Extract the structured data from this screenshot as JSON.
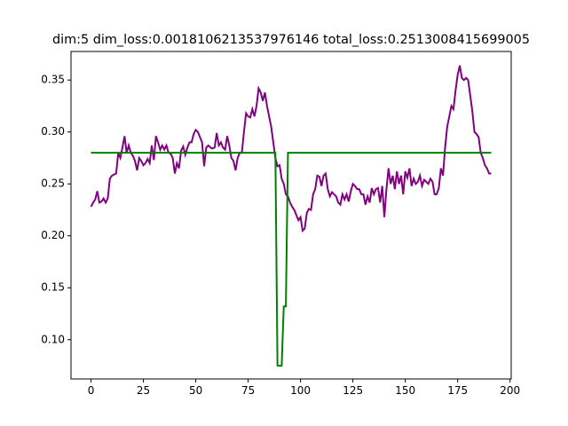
{
  "chart_data": {
    "type": "line",
    "title": "dim:5 dim_loss:0.0018106213537976146 total_loss:0.2513008415699005",
    "x": [
      0,
      1,
      2,
      3,
      4,
      5,
      6,
      7,
      8,
      9,
      10,
      11,
      12,
      13,
      14,
      15,
      16,
      17,
      18,
      19,
      20,
      21,
      22,
      23,
      24,
      25,
      26,
      27,
      28,
      29,
      30,
      31,
      32,
      33,
      34,
      35,
      36,
      37,
      38,
      39,
      40,
      41,
      42,
      43,
      44,
      45,
      46,
      47,
      48,
      49,
      50,
      51,
      52,
      53,
      54,
      55,
      56,
      57,
      58,
      59,
      60,
      61,
      62,
      63,
      64,
      65,
      66,
      67,
      68,
      69,
      70,
      71,
      72,
      73,
      74,
      75,
      76,
      77,
      78,
      79,
      80,
      81,
      82,
      83,
      84,
      85,
      86,
      87,
      88,
      89,
      90,
      91,
      92,
      93,
      94,
      95,
      96,
      97,
      98,
      99,
      100,
      101,
      102,
      103,
      104,
      105,
      106,
      107,
      108,
      109,
      110,
      111,
      112,
      113,
      114,
      115,
      116,
      117,
      118,
      119,
      120,
      121,
      122,
      123,
      124,
      125,
      126,
      127,
      128,
      129,
      130,
      131,
      132,
      133,
      134,
      135,
      136,
      137,
      138,
      139,
      140,
      141,
      142,
      143,
      144,
      145,
      146,
      147,
      148,
      149,
      150,
      151,
      152,
      153,
      154,
      155,
      156,
      157,
      158,
      159,
      160,
      161,
      162,
      163,
      164,
      165,
      166,
      167,
      168,
      169,
      170,
      171,
      172,
      173,
      174,
      175,
      176,
      177,
      178,
      179,
      180,
      181,
      182,
      183,
      184,
      185,
      186,
      187,
      188,
      189,
      190,
      191
    ],
    "series": [
      {
        "color": "#800080",
        "values": [
          0.228,
          0.232,
          0.235,
          0.243,
          0.232,
          0.233,
          0.236,
          0.232,
          0.236,
          0.255,
          0.258,
          0.259,
          0.26,
          0.28,
          0.275,
          0.285,
          0.296,
          0.28,
          0.287,
          0.28,
          0.277,
          0.272,
          0.263,
          0.275,
          0.272,
          0.268,
          0.27,
          0.274,
          0.27,
          0.287,
          0.273,
          0.296,
          0.29,
          0.283,
          0.287,
          0.283,
          0.287,
          0.28,
          0.279,
          0.275,
          0.26,
          0.27,
          0.265,
          0.282,
          0.286,
          0.278,
          0.285,
          0.29,
          0.29,
          0.298,
          0.302,
          0.3,
          0.295,
          0.29,
          0.267,
          0.285,
          0.287,
          0.285,
          0.284,
          0.285,
          0.299,
          0.287,
          0.29,
          0.285,
          0.283,
          0.296,
          0.287,
          0.275,
          0.272,
          0.263,
          0.275,
          0.28,
          0.28,
          0.3,
          0.318,
          0.315,
          0.314,
          0.322,
          0.315,
          0.325,
          0.342,
          0.338,
          0.33,
          0.338,
          0.325,
          0.315,
          0.305,
          0.29,
          0.275,
          0.267,
          0.268,
          0.255,
          0.25,
          0.24,
          0.238,
          0.232,
          0.228,
          0.225,
          0.22,
          0.215,
          0.218,
          0.205,
          0.207,
          0.222,
          0.226,
          0.225,
          0.24,
          0.245,
          0.258,
          0.257,
          0.248,
          0.258,
          0.26,
          0.245,
          0.238,
          0.242,
          0.24,
          0.238,
          0.232,
          0.23,
          0.24,
          0.235,
          0.24,
          0.233,
          0.243,
          0.25,
          0.248,
          0.245,
          0.245,
          0.24,
          0.24,
          0.23,
          0.238,
          0.232,
          0.246,
          0.24,
          0.245,
          0.246,
          0.232,
          0.248,
          0.218,
          0.245,
          0.265,
          0.25,
          0.258,
          0.245,
          0.262,
          0.25,
          0.258,
          0.24,
          0.262,
          0.256,
          0.265,
          0.248,
          0.255,
          0.25,
          0.252,
          0.258,
          0.248,
          0.254,
          0.252,
          0.25,
          0.255,
          0.252,
          0.24,
          0.24,
          0.246,
          0.265,
          0.258,
          0.285,
          0.305,
          0.315,
          0.325,
          0.322,
          0.34,
          0.355,
          0.364,
          0.352,
          0.35,
          0.352,
          0.35,
          0.335,
          0.32,
          0.3,
          0.298,
          0.295,
          0.28,
          0.275,
          0.268,
          0.265,
          0.26,
          0.26
        ]
      },
      {
        "color": "#008000",
        "values": [
          0.28,
          0.28,
          0.28,
          0.28,
          0.28,
          0.28,
          0.28,
          0.28,
          0.28,
          0.28,
          0.28,
          0.28,
          0.28,
          0.28,
          0.28,
          0.28,
          0.28,
          0.28,
          0.28,
          0.28,
          0.28,
          0.28,
          0.28,
          0.28,
          0.28,
          0.28,
          0.28,
          0.28,
          0.28,
          0.28,
          0.28,
          0.28,
          0.28,
          0.28,
          0.28,
          0.28,
          0.28,
          0.28,
          0.28,
          0.28,
          0.28,
          0.28,
          0.28,
          0.28,
          0.28,
          0.28,
          0.28,
          0.28,
          0.28,
          0.28,
          0.28,
          0.28,
          0.28,
          0.28,
          0.28,
          0.28,
          0.28,
          0.28,
          0.28,
          0.28,
          0.28,
          0.28,
          0.28,
          0.28,
          0.28,
          0.28,
          0.28,
          0.28,
          0.28,
          0.28,
          0.28,
          0.28,
          0.28,
          0.28,
          0.28,
          0.28,
          0.28,
          0.28,
          0.28,
          0.28,
          0.28,
          0.28,
          0.28,
          0.28,
          0.28,
          0.28,
          0.28,
          0.28,
          0.28,
          0.075,
          0.075,
          0.075,
          0.132,
          0.132,
          0.28,
          0.28,
          0.28,
          0.28,
          0.28,
          0.28,
          0.28,
          0.28,
          0.28,
          0.28,
          0.28,
          0.28,
          0.28,
          0.28,
          0.28,
          0.28,
          0.28,
          0.28,
          0.28,
          0.28,
          0.28,
          0.28,
          0.28,
          0.28,
          0.28,
          0.28,
          0.28,
          0.28,
          0.28,
          0.28,
          0.28,
          0.28,
          0.28,
          0.28,
          0.28,
          0.28,
          0.28,
          0.28,
          0.28,
          0.28,
          0.28,
          0.28,
          0.28,
          0.28,
          0.28,
          0.28,
          0.28,
          0.28,
          0.28,
          0.28,
          0.28,
          0.28,
          0.28,
          0.28,
          0.28,
          0.28,
          0.28,
          0.28,
          0.28,
          0.28,
          0.28,
          0.28,
          0.28,
          0.28,
          0.28,
          0.28,
          0.28,
          0.28,
          0.28,
          0.28,
          0.28,
          0.28,
          0.28,
          0.28,
          0.28,
          0.28,
          0.28,
          0.28,
          0.28,
          0.28,
          0.28,
          0.28,
          0.28,
          0.28,
          0.28,
          0.28,
          0.28,
          0.28,
          0.28,
          0.28,
          0.28,
          0.28,
          0.28,
          0.28,
          0.28,
          0.28,
          0.28,
          0.28
        ]
      }
    ],
    "xlim": [
      -9.55,
      200.55
    ],
    "xticks": [
      0,
      25,
      50,
      75,
      100,
      125,
      150,
      175,
      200
    ],
    "ylim": [
      0.0622,
      0.3775
    ],
    "yticks": [
      {
        "value": 0.1,
        "label": "0.10"
      },
      0.15,
      {
        "value": 0.2,
        "label": "0.20"
      },
      0.25,
      {
        "value": 0.3,
        "label": "0.30"
      },
      0.35
    ]
  }
}
